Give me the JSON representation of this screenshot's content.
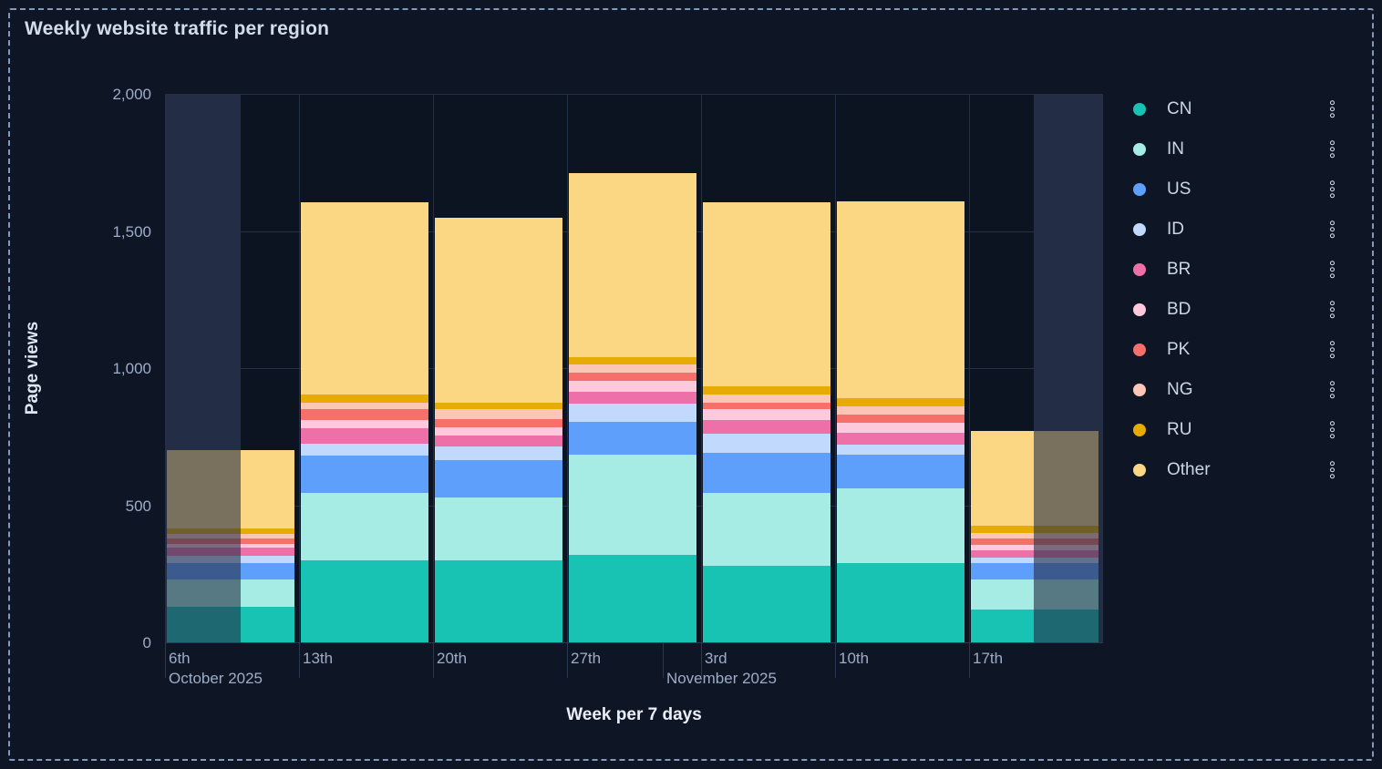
{
  "panel": {
    "title": "Weekly website traffic per region"
  },
  "icons": {
    "legend_item_menu": "kebab-vertical-dots-icon"
  },
  "chart_data": {
    "type": "bar",
    "stacked": true,
    "title": "Weekly website traffic per region",
    "xlabel": "Week per 7 days",
    "ylabel": "Page views",
    "ylim": [
      0,
      2000
    ],
    "yticks": [
      0,
      500,
      1000,
      1500,
      2000
    ],
    "ytick_labels": [
      "0",
      "500",
      "1,000",
      "1,500",
      "2,000"
    ],
    "grid": true,
    "legend_position": "right",
    "categories": [
      "6th",
      "13th",
      "20th",
      "27th",
      "3rd",
      "10th",
      "17th"
    ],
    "month_labels": [
      {
        "text": "October 2025",
        "anchor_bar": 0,
        "day_frac": 0
      },
      {
        "text": "November 2025",
        "anchor_bar": 3,
        "day_frac": 0.714
      }
    ],
    "series": [
      {
        "name": "CN",
        "color": "#19c3b4",
        "values": [
          130,
          300,
          300,
          320,
          280,
          290,
          120
        ]
      },
      {
        "name": "IN",
        "color": "#a6ece4",
        "values": [
          100,
          245,
          230,
          365,
          265,
          270,
          110
        ]
      },
      {
        "name": "US",
        "color": "#5f9ffc",
        "values": [
          60,
          135,
          135,
          120,
          145,
          125,
          60
        ]
      },
      {
        "name": "ID",
        "color": "#c1d9fc",
        "values": [
          25,
          45,
          50,
          65,
          70,
          35,
          20
        ]
      },
      {
        "name": "BR",
        "color": "#ee70a8",
        "values": [
          30,
          55,
          40,
          45,
          50,
          45,
          25
        ]
      },
      {
        "name": "BD",
        "color": "#fec9dc",
        "values": [
          15,
          30,
          30,
          40,
          40,
          35,
          20
        ]
      },
      {
        "name": "PK",
        "color": "#f5706a",
        "values": [
          20,
          40,
          30,
          30,
          25,
          30,
          25
        ]
      },
      {
        "name": "NG",
        "color": "#fcc6b7",
        "values": [
          15,
          25,
          35,
          30,
          30,
          30,
          20
        ]
      },
      {
        "name": "RU",
        "color": "#e6ab04",
        "values": [
          20,
          30,
          25,
          25,
          30,
          30,
          25
        ]
      },
      {
        "name": "Other",
        "color": "#fbd784",
        "values": [
          285,
          700,
          675,
          670,
          670,
          720,
          345
        ]
      }
    ],
    "out_of_range_shading": {
      "overlay_color": "#232d45",
      "dimmed_bar_opacity": 0.4,
      "left_region": {
        "from_plot_left": true,
        "end_bar": 0,
        "end_frac": 0.58
      },
      "right_region": {
        "to_plot_right": true,
        "start_bar": 6,
        "start_frac": 0.49
      }
    }
  }
}
